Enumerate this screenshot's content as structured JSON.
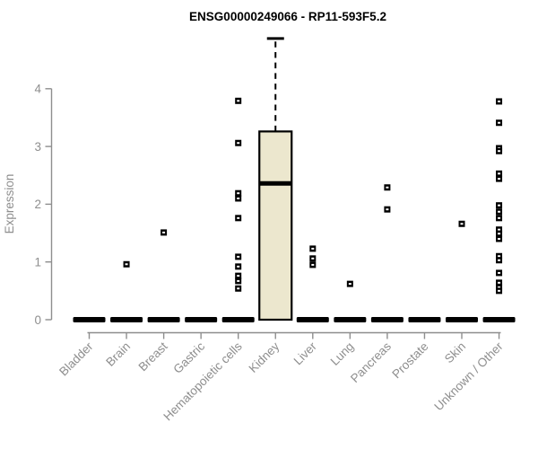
{
  "chart_data": {
    "type": "boxplot",
    "title": "ENSG00000249066 - RP11-593F5.2",
    "xlabel": "",
    "ylabel": "Expression",
    "yticks": [
      0,
      1,
      2,
      3,
      4
    ],
    "ylim": [
      -0.2,
      4.95
    ],
    "grid": "off",
    "legend": "none",
    "axis_color": "#8e8e8e",
    "box_fill": "#ece7ce",
    "box_stroke": "#000000",
    "outlier_color": "#000000",
    "categories": [
      "Bladder",
      "Brain",
      "Breast",
      "Gastric",
      "Hematopoietic cells",
      "Kidney",
      "Liver",
      "Lung",
      "Pancreas",
      "Prostate",
      "Skin",
      "Unknown / Other"
    ],
    "boxes": [
      {
        "category": "Bladder",
        "q1": 0,
        "median": 0,
        "q3": 0,
        "whisker_low": 0,
        "whisker_high": 0,
        "outliers": []
      },
      {
        "category": "Brain",
        "q1": 0,
        "median": 0,
        "q3": 0,
        "whisker_low": 0,
        "whisker_high": 0,
        "outliers": [
          0.96
        ]
      },
      {
        "category": "Breast",
        "q1": 0,
        "median": 0,
        "q3": 0,
        "whisker_low": 0,
        "whisker_high": 0,
        "outliers": [
          1.51
        ]
      },
      {
        "category": "Gastric",
        "q1": 0,
        "median": 0,
        "q3": 0,
        "whisker_low": 0,
        "whisker_high": 0,
        "outliers": []
      },
      {
        "category": "Hematopoietic cells",
        "q1": 0,
        "median": 0,
        "q3": 0,
        "whisker_low": 0,
        "whisker_high": 0,
        "outliers": [
          3.79,
          3.06,
          2.19,
          2.1,
          1.76,
          1.09,
          0.92,
          0.76,
          0.67,
          0.54
        ]
      },
      {
        "category": "Kidney",
        "q1": 0,
        "median": 2.36,
        "q3": 3.26,
        "whisker_low": 0,
        "whisker_high": 4.87,
        "outliers": []
      },
      {
        "category": "Liver",
        "q1": 0,
        "median": 0,
        "q3": 0,
        "whisker_low": 0,
        "whisker_high": 0,
        "outliers": [
          1.23,
          1.06,
          0.95
        ]
      },
      {
        "category": "Lung",
        "q1": 0,
        "median": 0,
        "q3": 0,
        "whisker_low": 0,
        "whisker_high": 0,
        "outliers": [
          0.62
        ]
      },
      {
        "category": "Pancreas",
        "q1": 0,
        "median": 0,
        "q3": 0,
        "whisker_low": 0,
        "whisker_high": 0,
        "outliers": [
          2.29,
          1.91
        ]
      },
      {
        "category": "Prostate",
        "q1": 0,
        "median": 0,
        "q3": 0,
        "whisker_low": 0,
        "whisker_high": 0,
        "outliers": []
      },
      {
        "category": "Skin",
        "q1": 0,
        "median": 0,
        "q3": 0,
        "whisker_low": 0,
        "whisker_high": 0,
        "outliers": [
          1.66
        ]
      },
      {
        "category": "Unknown / Other",
        "q1": 0,
        "median": 0,
        "q3": 0,
        "whisker_low": 0,
        "whisker_high": 0,
        "outliers": [
          3.78,
          3.41,
          2.97,
          2.92,
          2.53,
          2.44,
          1.98,
          1.87,
          1.76,
          1.56,
          1.49,
          1.4,
          1.1,
          1.03,
          0.81,
          0.64,
          0.56,
          0.5
        ]
      }
    ]
  }
}
